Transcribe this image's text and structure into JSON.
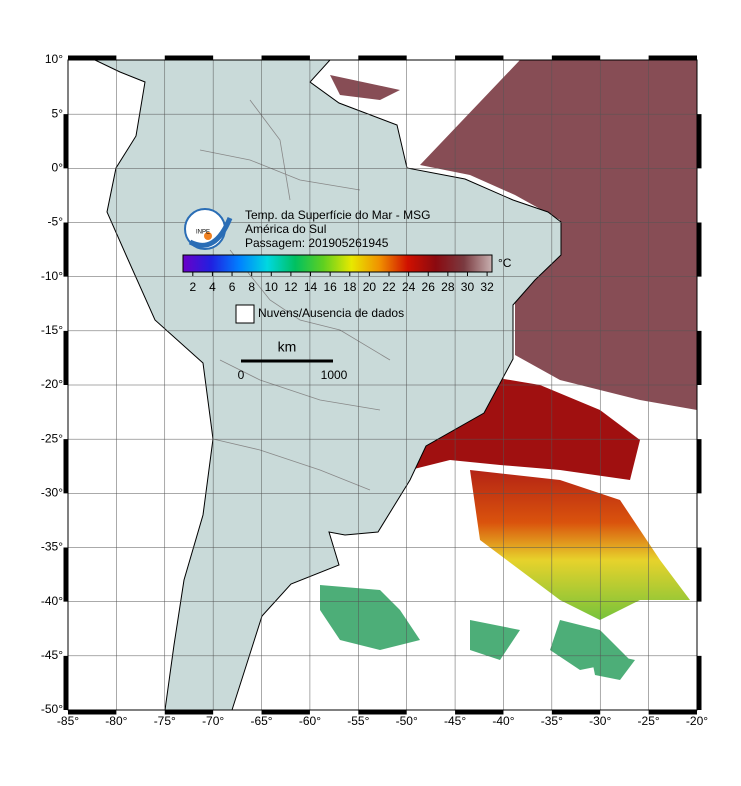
{
  "map": {
    "title": "Temp. da Superfície do Mar - MSG",
    "subtitle": "América do Sul",
    "pass": "Passagem: 201905261945",
    "logo_text": "INPE",
    "xlim": [
      -85,
      -20
    ],
    "ylim": [
      -50,
      10
    ],
    "xticks": [
      {
        "value": -85,
        "label": "-85°"
      },
      {
        "value": -80,
        "label": "-80°"
      },
      {
        "value": -75,
        "label": "-75°"
      },
      {
        "value": -70,
        "label": "-70°"
      },
      {
        "value": -65,
        "label": "-65°"
      },
      {
        "value": -60,
        "label": "-60°"
      },
      {
        "value": -55,
        "label": "-55°"
      },
      {
        "value": -50,
        "label": "-50°"
      },
      {
        "value": -45,
        "label": "-45°"
      },
      {
        "value": -40,
        "label": "-40°"
      },
      {
        "value": -35,
        "label": "-35°"
      },
      {
        "value": -30,
        "label": "-30°"
      },
      {
        "value": -25,
        "label": "-25°"
      },
      {
        "value": -20,
        "label": "-20°"
      }
    ],
    "yticks": [
      {
        "value": 10,
        "label": "10°"
      },
      {
        "value": 5,
        "label": "5°"
      },
      {
        "value": 0,
        "label": "0°"
      },
      {
        "value": -5,
        "label": "-5°"
      },
      {
        "value": -10,
        "label": "-10°"
      },
      {
        "value": -15,
        "label": "-15°"
      },
      {
        "value": -20,
        "label": "-20°"
      },
      {
        "value": -25,
        "label": "-25°"
      },
      {
        "value": -30,
        "label": "-30°"
      },
      {
        "value": -35,
        "label": "-35°"
      },
      {
        "value": -40,
        "label": "-40°"
      },
      {
        "value": -45,
        "label": "-45°"
      },
      {
        "value": -50,
        "label": "-50°"
      }
    ],
    "grid": true,
    "colorbar": {
      "range": [
        1,
        32.5
      ],
      "ticks": [
        2,
        4,
        6,
        8,
        10,
        12,
        14,
        16,
        18,
        20,
        22,
        24,
        26,
        28,
        30,
        32
      ],
      "unit": "°C",
      "colormap": [
        "#6a00c8",
        "#2020e0",
        "#0080ff",
        "#00d8e0",
        "#00c060",
        "#60d020",
        "#e8e800",
        "#f09000",
        "#d01000",
        "#8a0a10",
        "#7a3a40",
        "#c8b0b0"
      ]
    },
    "legend": "Nuvens/Ausencia de dados",
    "scale": {
      "unit": "km",
      "start": "0",
      "end": "1000"
    }
  }
}
